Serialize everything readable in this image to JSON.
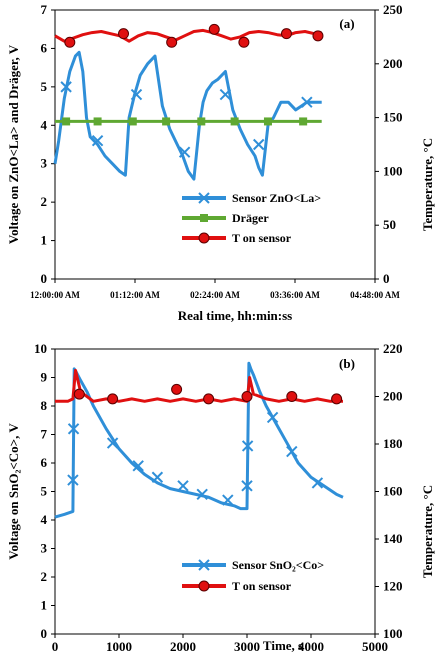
{
  "chart_data": [
    {
      "type": "line",
      "panel_label": "(a)",
      "xlabel": "Real time, hh:min:ss",
      "ylabel": "Voltage on ZnO<La> and Dräger, V",
      "y2label": "Temperature, °C",
      "ylim": [
        0,
        7
      ],
      "y2lim": [
        0,
        250
      ],
      "yticks": [
        "0",
        "1",
        "2",
        "3",
        "4",
        "5",
        "6",
        "7"
      ],
      "y2ticks": [
        "0",
        "50",
        "100",
        "150",
        "200",
        "250"
      ],
      "xlim": [
        0,
        17280
      ],
      "xticks": [
        {
          "x": 0,
          "label": "12:00:00 AM"
        },
        {
          "x": 4320,
          "label": "01:12:00 AM"
        },
        {
          "x": 8640,
          "label": "02:24:00 AM"
        },
        {
          "x": 12960,
          "label": "03:36:00 AM"
        },
        {
          "x": 17280,
          "label": "04:48:00 AM"
        }
      ],
      "legend": {
        "position": "lower-right",
        "entries": [
          "Sensor ZnO<La>",
          "Dräger",
          "T on sensor"
        ]
      },
      "series": [
        {
          "name": "Sensor ZnO<La>",
          "axis": "left",
          "color": "#2f8fd8",
          "marker": "x",
          "x": [
            0,
            200,
            500,
            800,
            1100,
            1300,
            1500,
            1700,
            1900,
            2300,
            2700,
            3100,
            3500,
            3800,
            4000,
            4300,
            4600,
            5000,
            5400,
            5800,
            6200,
            6600,
            6900,
            7200,
            7500,
            7800,
            8000,
            8200,
            8500,
            8800,
            9200,
            9600,
            10000,
            10400,
            10800,
            11000,
            11200,
            11500,
            11800,
            12200,
            12600,
            13000,
            13300,
            13600,
            14000,
            14400
          ],
          "y": [
            3.0,
            3.6,
            4.7,
            5.4,
            5.8,
            5.9,
            5.4,
            4.2,
            3.7,
            3.5,
            3.2,
            3.0,
            2.8,
            2.7,
            4.2,
            4.8,
            5.3,
            5.6,
            5.8,
            4.5,
            3.9,
            3.5,
            3.2,
            2.8,
            2.6,
            4.0,
            4.6,
            4.9,
            5.1,
            5.2,
            5.4,
            4.4,
            3.9,
            3.5,
            3.2,
            2.9,
            2.7,
            4.0,
            4.2,
            4.6,
            4.6,
            4.4,
            4.5,
            4.6,
            4.6,
            4.6
          ],
          "marker_x": [
            600,
            2300,
            4400,
            7000,
            9200,
            11000,
            13600
          ],
          "marker_y": [
            5.0,
            3.6,
            4.8,
            3.3,
            4.8,
            3.5,
            4.6
          ]
        },
        {
          "name": "Dräger",
          "axis": "left",
          "color": "#5fa832",
          "marker": "square",
          "x": [
            0,
            14400
          ],
          "y": [
            4.1,
            4.1
          ],
          "marker_x": [
            600,
            2300,
            4200,
            6000,
            7900,
            9700,
            11500,
            13400
          ],
          "marker_y": [
            4.1,
            4.1,
            4.1,
            4.1,
            4.1,
            4.1,
            4.1,
            4.1
          ]
        },
        {
          "name": "T on sensor",
          "axis": "right",
          "color": "#e01010",
          "marker": "circle",
          "x": [
            0,
            500,
            1000,
            1500,
            2000,
            2500,
            3000,
            3500,
            4000,
            4500,
            5000,
            5500,
            6000,
            6500,
            7000,
            7500,
            8000,
            8500,
            9000,
            9500,
            10000,
            10500,
            11000,
            11500,
            12000,
            12500,
            13000,
            13500,
            14000,
            14400
          ],
          "y": [
            226,
            221,
            224,
            227,
            229,
            230,
            228,
            226,
            221,
            226,
            229,
            228,
            225,
            222,
            226,
            230,
            231,
            229,
            226,
            223,
            225,
            229,
            230,
            229,
            227,
            226,
            229,
            230,
            228,
            229
          ],
          "marker_x": [
            800,
            3700,
            6300,
            8600,
            10200,
            12500,
            14200
          ],
          "marker_y": [
            220,
            228,
            220,
            232,
            220,
            228,
            226
          ]
        }
      ]
    },
    {
      "type": "line",
      "panel_label": "(b)",
      "xlabel": "Time, s",
      "ylabel": "Voltage on SnO₂<Co>, V",
      "y2label": "Temperature, °C",
      "ylim": [
        0,
        10
      ],
      "y2lim": [
        100,
        220
      ],
      "yticks": [
        "0",
        "1",
        "2",
        "3",
        "4",
        "5",
        "6",
        "7",
        "8",
        "9",
        "10"
      ],
      "y2ticks": [
        "100",
        "120",
        "140",
        "160",
        "180",
        "200",
        "220"
      ],
      "xlim": [
        0,
        5000
      ],
      "xticks": [
        {
          "x": 0,
          "label": "0"
        },
        {
          "x": 1000,
          "label": "1000"
        },
        {
          "x": 2000,
          "label": "2000"
        },
        {
          "x": 3000,
          "label": "3000"
        },
        {
          "x": 4000,
          "label": "4000"
        },
        {
          "x": 5000,
          "label": "5000"
        }
      ],
      "legend": {
        "position": "lower-right",
        "entries": [
          "Sensor SnO₂<Co>",
          "T on sensor"
        ]
      },
      "series": [
        {
          "name": "Sensor SnO₂<Co>",
          "axis": "left",
          "color": "#2f8fd8",
          "marker": "x",
          "x": [
            0,
            150,
            280,
            300,
            330,
            400,
            500,
            600,
            800,
            1000,
            1200,
            1400,
            1600,
            1800,
            2000,
            2200,
            2400,
            2600,
            2800,
            2900,
            3000,
            3030,
            3060,
            3100,
            3200,
            3300,
            3400,
            3600,
            3800,
            4000,
            4200,
            4400,
            4500
          ],
          "y": [
            4.1,
            4.2,
            4.3,
            9.3,
            9.2,
            8.9,
            8.5,
            8.0,
            7.2,
            6.5,
            6.0,
            5.6,
            5.3,
            5.1,
            5.0,
            4.9,
            4.8,
            4.6,
            4.5,
            4.4,
            4.4,
            9.5,
            9.3,
            9.1,
            8.5,
            8.0,
            7.6,
            6.8,
            6.0,
            5.5,
            5.2,
            4.9,
            4.8
          ],
          "marker_x": [
            280,
            290,
            900,
            1300,
            1600,
            2000,
            2300,
            2700,
            3000,
            3010,
            3400,
            3700,
            4100
          ],
          "marker_y": [
            5.4,
            7.2,
            6.7,
            5.9,
            5.5,
            5.2,
            4.9,
            4.7,
            5.2,
            6.6,
            7.6,
            6.4,
            5.3
          ]
        },
        {
          "name": "T on sensor",
          "axis": "right",
          "color": "#e01010",
          "marker": "circle",
          "x": [
            0,
            200,
            280,
            320,
            400,
            600,
            800,
            1000,
            1200,
            1400,
            1600,
            1800,
            2000,
            2200,
            2400,
            2600,
            2800,
            3000,
            3040,
            3100,
            3300,
            3500,
            3700,
            3900,
            4100,
            4300,
            4500
          ],
          "y": [
            198,
            198,
            199,
            211,
            202,
            198,
            199,
            198,
            199,
            198,
            199,
            198,
            199,
            198,
            199,
            198,
            199,
            198,
            208,
            201,
            199,
            198,
            199,
            198,
            199,
            198,
            198
          ],
          "marker_x": [
            380,
            900,
            1900,
            2400,
            3000,
            3700,
            4400
          ],
          "marker_y": [
            201,
            199,
            203,
            199,
            200,
            200,
            199
          ]
        }
      ]
    }
  ]
}
